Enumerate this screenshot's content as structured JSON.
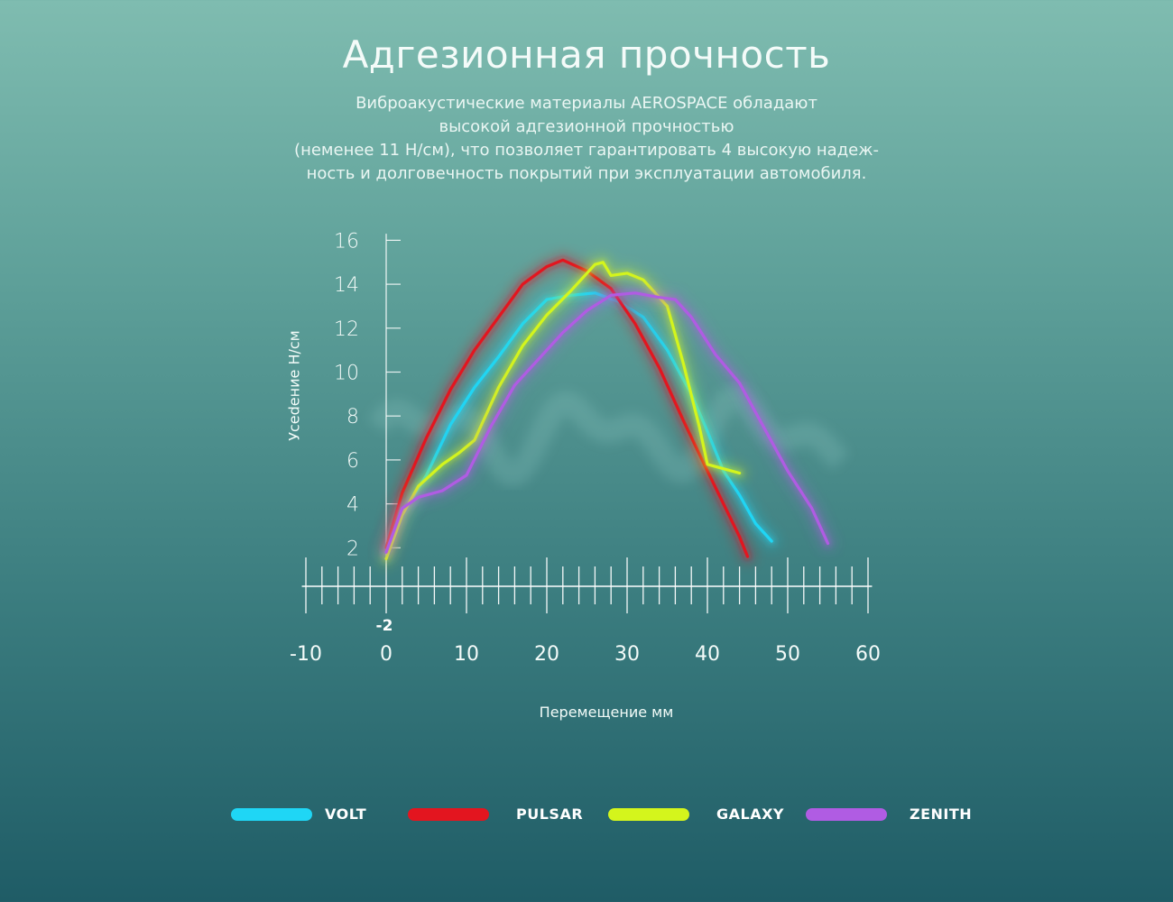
{
  "header": {
    "title": "Адгезионная прочность",
    "description_lines": [
      "Виброакустические материалы AEROSPACE обладают",
      "высокой адгезионной прочностью",
      "(неменее 11 Н/см), что позволяет гарантировать 4 высокую надеж-",
      "ность и долговечность покрытий при эксплуатации автомобиля."
    ]
  },
  "chart_data": {
    "type": "line",
    "title": "Адгезионная прочность",
    "xlabel": "Перемещение мм",
    "ylabel": "Усеdение Н/см",
    "xlim": [
      -10,
      60
    ],
    "ylim": [
      1.5,
      16.5
    ],
    "x_ticks": [
      -10,
      0,
      10,
      20,
      30,
      40,
      50,
      60
    ],
    "x_tick_labels": [
      "-10",
      "0",
      "10",
      "20",
      "30",
      "40",
      "50",
      "60"
    ],
    "x_extra_label": "-2",
    "y_ticks": [
      2,
      4,
      6,
      8,
      10,
      12,
      14,
      16
    ],
    "y_tick_labels": [
      "2",
      "4",
      "6",
      "8",
      "10",
      "12",
      "14",
      "16"
    ],
    "legend_position": "bottom",
    "series": [
      {
        "name": "VOLT",
        "color": "#1fd6f5",
        "x": [
          0,
          2,
          5,
          8,
          11,
          14,
          17,
          20,
          23,
          26,
          29,
          32,
          35,
          38,
          40,
          42,
          44,
          46,
          48
        ],
        "y": [
          1.8,
          3.5,
          5.3,
          7.6,
          9.3,
          10.7,
          12.2,
          13.3,
          13.5,
          13.6,
          13.2,
          12.5,
          11.0,
          9.0,
          7.3,
          5.5,
          4.4,
          3.1,
          2.3
        ]
      },
      {
        "name": "PULSAR",
        "color": "#e3151f",
        "x": [
          0,
          2,
          5,
          8,
          11,
          14,
          17,
          20,
          22,
          25,
          28,
          31,
          34,
          37,
          40,
          42,
          44,
          45
        ],
        "y": [
          2.0,
          4.5,
          7.0,
          9.2,
          11.0,
          12.5,
          14.0,
          14.8,
          15.1,
          14.6,
          13.8,
          12.2,
          10.2,
          7.8,
          5.5,
          4.0,
          2.5,
          1.6
        ]
      },
      {
        "name": "GALAXY",
        "color": "#d4f51c",
        "x": [
          0,
          2,
          4,
          7,
          9,
          11,
          14,
          17,
          20,
          23,
          26,
          27,
          28,
          30,
          32,
          35,
          37,
          39,
          40,
          44
        ],
        "y": [
          1.5,
          3.5,
          4.8,
          5.8,
          6.3,
          6.9,
          9.3,
          11.2,
          12.6,
          13.7,
          14.9,
          15.0,
          14.4,
          14.5,
          14.2,
          13.0,
          10.4,
          7.5,
          5.8,
          5.4
        ]
      },
      {
        "name": "ZENITH",
        "color": "#b05ce3",
        "x": [
          0,
          2,
          4,
          7,
          10,
          13,
          16,
          19,
          22,
          25,
          28,
          31,
          34,
          36,
          38,
          41,
          44,
          47,
          50,
          53,
          55
        ],
        "y": [
          1.8,
          3.8,
          4.3,
          4.6,
          5.3,
          7.5,
          9.4,
          10.6,
          11.8,
          12.8,
          13.5,
          13.6,
          13.4,
          13.3,
          12.5,
          10.8,
          9.5,
          7.5,
          5.5,
          3.8,
          2.2
        ]
      }
    ]
  }
}
